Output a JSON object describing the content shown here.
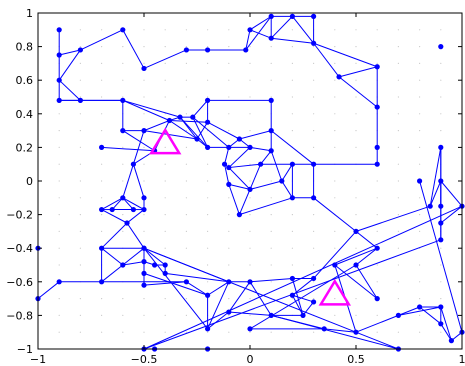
{
  "chart_data": {
    "type": "scatter",
    "title": "",
    "xlabel": "",
    "ylabel": "",
    "xlim": [
      -1,
      1
    ],
    "ylim": [
      -1,
      1
    ],
    "grid": "dotted",
    "x_ticks": [
      {
        "value": -1,
        "label": "−1"
      },
      {
        "value": -0.5,
        "label": "−0.5"
      },
      {
        "value": 0,
        "label": "0"
      },
      {
        "value": 0.5,
        "label": "0.5"
      },
      {
        "value": 1,
        "label": "1"
      }
    ],
    "y_ticks": [
      {
        "value": -1,
        "label": "−1"
      },
      {
        "value": -0.8,
        "label": "−0.8"
      },
      {
        "value": -0.6,
        "label": "−0.6"
      },
      {
        "value": -0.4,
        "label": "−0.4"
      },
      {
        "value": -0.2,
        "label": "−0.2"
      },
      {
        "value": 0,
        "label": "0"
      },
      {
        "value": 0.2,
        "label": "0.2"
      },
      {
        "value": 0.4,
        "label": "0.4"
      },
      {
        "value": 0.6,
        "label": "0.6"
      },
      {
        "value": 0.8,
        "label": "0.8"
      },
      {
        "value": 1,
        "label": "1"
      }
    ],
    "colors": {
      "network": "#0000ff",
      "markers": "#ff00ff",
      "grid": "#c8c8c8",
      "axes": "#000000"
    },
    "nodes": [
      {
        "x": -0.9,
        "y": 0.9
      },
      {
        "x": -0.9,
        "y": 0.75
      },
      {
        "x": -0.9,
        "y": 0.6
      },
      {
        "x": -0.9,
        "y": 0.48
      },
      {
        "x": -0.8,
        "y": 0.78
      },
      {
        "x": -0.8,
        "y": 0.48
      },
      {
        "x": -0.6,
        "y": 0.9
      },
      {
        "x": -0.5,
        "y": 0.67
      },
      {
        "x": -0.3,
        "y": 0.78
      },
      {
        "x": -0.2,
        "y": 0.78
      },
      {
        "x": -0.02,
        "y": 0.78
      },
      {
        "x": 0.1,
        "y": 0.98
      },
      {
        "x": 0.2,
        "y": 0.98
      },
      {
        "x": 0.3,
        "y": 0.98
      },
      {
        "x": 0.0,
        "y": 0.9
      },
      {
        "x": 0.1,
        "y": 0.85
      },
      {
        "x": 0.3,
        "y": 0.82
      },
      {
        "x": 0.42,
        "y": 0.62
      },
      {
        "x": 0.6,
        "y": 0.68
      },
      {
        "x": 0.6,
        "y": 0.44
      },
      {
        "x": 0.6,
        "y": 0.2
      },
      {
        "x": 0.6,
        "y": 0.1
      },
      {
        "x": 0.9,
        "y": 0.8
      },
      {
        "x": -0.6,
        "y": 0.48
      },
      {
        "x": -0.6,
        "y": 0.3
      },
      {
        "x": -0.5,
        "y": 0.3
      },
      {
        "x": -0.38,
        "y": 0.36
      },
      {
        "x": -0.33,
        "y": 0.38
      },
      {
        "x": -0.27,
        "y": 0.38
      },
      {
        "x": -0.2,
        "y": 0.48
      },
      {
        "x": -0.2,
        "y": 0.35
      },
      {
        "x": -0.25,
        "y": 0.25
      },
      {
        "x": -0.2,
        "y": 0.2
      },
      {
        "x": -0.1,
        "y": 0.2
      },
      {
        "x": -0.05,
        "y": 0.25
      },
      {
        "x": -0.7,
        "y": 0.2
      },
      {
        "x": -0.45,
        "y": 0.18
      },
      {
        "x": -0.55,
        "y": 0.1
      },
      {
        "x": -0.1,
        "y": 0.08
      },
      {
        "x": 0.0,
        "y": 0.2
      },
      {
        "x": 0.1,
        "y": 0.48
      },
      {
        "x": 0.1,
        "y": 0.3
      },
      {
        "x": 0.1,
        "y": 0.18
      },
      {
        "x": 0.05,
        "y": 0.1
      },
      {
        "x": 0.0,
        "y": -0.05
      },
      {
        "x": 0.2,
        "y": 0.1
      },
      {
        "x": 0.3,
        "y": 0.1
      },
      {
        "x": 0.15,
        "y": 0.0
      },
      {
        "x": 0.2,
        "y": -0.1
      },
      {
        "x": 0.3,
        "y": -0.1
      },
      {
        "x": -0.1,
        "y": -0.02
      },
      {
        "x": -0.05,
        "y": -0.2
      },
      {
        "x": -0.12,
        "y": 0.1
      },
      {
        "x": -0.6,
        "y": -0.1
      },
      {
        "x": -0.7,
        "y": -0.17
      },
      {
        "x": -0.65,
        "y": -0.17
      },
      {
        "x": -0.55,
        "y": -0.17
      },
      {
        "x": -0.5,
        "y": -0.17
      },
      {
        "x": -0.5,
        "y": -0.1
      },
      {
        "x": -0.58,
        "y": -0.25
      },
      {
        "x": -0.7,
        "y": -0.4
      },
      {
        "x": -0.5,
        "y": -0.4
      },
      {
        "x": -0.6,
        "y": -0.5
      },
      {
        "x": -0.5,
        "y": -0.48
      },
      {
        "x": -0.45,
        "y": -0.5
      },
      {
        "x": -0.4,
        "y": -0.5
      },
      {
        "x": -0.5,
        "y": -0.55
      },
      {
        "x": -0.4,
        "y": -0.55
      },
      {
        "x": -0.5,
        "y": -0.62
      },
      {
        "x": -1.0,
        "y": -0.4
      },
      {
        "x": -1.0,
        "y": -0.7
      },
      {
        "x": -0.9,
        "y": -0.6
      },
      {
        "x": -0.7,
        "y": -0.6
      },
      {
        "x": -0.3,
        "y": -0.6
      },
      {
        "x": -0.2,
        "y": -0.68
      },
      {
        "x": -0.1,
        "y": -0.6
      },
      {
        "x": 0.0,
        "y": -0.6
      },
      {
        "x": 0.2,
        "y": -0.58
      },
      {
        "x": 0.3,
        "y": -0.58
      },
      {
        "x": 0.2,
        "y": -0.68
      },
      {
        "x": 0.25,
        "y": -0.8
      },
      {
        "x": 0.3,
        "y": -0.72
      },
      {
        "x": 0.1,
        "y": -0.8
      },
      {
        "x": -0.1,
        "y": -0.78
      },
      {
        "x": -0.2,
        "y": -0.88
      },
      {
        "x": -0.5,
        "y": -0.4
      },
      {
        "x": 0.5,
        "y": -0.3
      },
      {
        "x": 0.6,
        "y": -0.4
      },
      {
        "x": 0.4,
        "y": -0.5
      },
      {
        "x": 0.5,
        "y": -0.5
      },
      {
        "x": 0.6,
        "y": -0.7
      },
      {
        "x": 0.5,
        "y": -0.9
      },
      {
        "x": 0.35,
        "y": -0.88
      },
      {
        "x": 0.0,
        "y": -0.88
      },
      {
        "x": 0.7,
        "y": -1.0
      },
      {
        "x": 0.7,
        "y": -0.8
      },
      {
        "x": 0.8,
        "y": -0.75
      },
      {
        "x": 0.9,
        "y": -0.75
      },
      {
        "x": 0.9,
        "y": -0.85
      },
      {
        "x": 0.95,
        "y": -0.95
      },
      {
        "x": 1.0,
        "y": -0.9
      },
      {
        "x": 0.8,
        "y": 0.0
      },
      {
        "x": 0.9,
        "y": 0.0
      },
      {
        "x": 0.9,
        "y": 0.2
      },
      {
        "x": 0.85,
        "y": -0.15
      },
      {
        "x": 0.9,
        "y": -0.15
      },
      {
        "x": 1.0,
        "y": -0.15
      },
      {
        "x": 0.9,
        "y": -0.25
      },
      {
        "x": 0.9,
        "y": -0.35
      },
      {
        "x": -0.5,
        "y": -1.0
      },
      {
        "x": -0.45,
        "y": -1.0
      },
      {
        "x": -0.2,
        "y": -1.0
      }
    ],
    "edges": [
      [
        0,
        1
      ],
      [
        1,
        2
      ],
      [
        2,
        3
      ],
      [
        1,
        4
      ],
      [
        4,
        6
      ],
      [
        6,
        7
      ],
      [
        7,
        8
      ],
      [
        4,
        2
      ],
      [
        2,
        5
      ],
      [
        5,
        3
      ],
      [
        3,
        23
      ],
      [
        5,
        23
      ],
      [
        8,
        9
      ],
      [
        9,
        10
      ],
      [
        10,
        14
      ],
      [
        14,
        11
      ],
      [
        11,
        12
      ],
      [
        12,
        13
      ],
      [
        13,
        16
      ],
      [
        11,
        15
      ],
      [
        12,
        15
      ],
      [
        14,
        15
      ],
      [
        15,
        16
      ],
      [
        10,
        11
      ],
      [
        12,
        16
      ],
      [
        16,
        17
      ],
      [
        17,
        18
      ],
      [
        18,
        19
      ],
      [
        19,
        20
      ],
      [
        20,
        21
      ],
      [
        16,
        18
      ],
      [
        17,
        19
      ],
      [
        21,
        46
      ],
      [
        23,
        24
      ],
      [
        23,
        27
      ],
      [
        23,
        26
      ],
      [
        24,
        25
      ],
      [
        25,
        26
      ],
      [
        26,
        27
      ],
      [
        27,
        28
      ],
      [
        28,
        29
      ],
      [
        29,
        30
      ],
      [
        30,
        31
      ],
      [
        31,
        32
      ],
      [
        32,
        33
      ],
      [
        33,
        34
      ],
      [
        26,
        30
      ],
      [
        27,
        31
      ],
      [
        28,
        32
      ],
      [
        29,
        40
      ],
      [
        40,
        41
      ],
      [
        41,
        42
      ],
      [
        42,
        43
      ],
      [
        43,
        44
      ],
      [
        33,
        39
      ],
      [
        39,
        34
      ],
      [
        34,
        41
      ],
      [
        39,
        42
      ],
      [
        35,
        36
      ],
      [
        36,
        37
      ],
      [
        37,
        25
      ],
      [
        36,
        26
      ],
      [
        24,
        36
      ],
      [
        26,
        31
      ],
      [
        27,
        32
      ],
      [
        28,
        33
      ],
      [
        25,
        31
      ],
      [
        30,
        34
      ],
      [
        38,
        39
      ],
      [
        38,
        52
      ],
      [
        52,
        50
      ],
      [
        50,
        44
      ],
      [
        44,
        47
      ],
      [
        47,
        48
      ],
      [
        48,
        49
      ],
      [
        49,
        46
      ],
      [
        46,
        45
      ],
      [
        45,
        47
      ],
      [
        43,
        45
      ],
      [
        42,
        47
      ],
      [
        50,
        51
      ],
      [
        51,
        48
      ],
      [
        44,
        51
      ],
      [
        38,
        44
      ],
      [
        52,
        33
      ],
      [
        43,
        38
      ],
      [
        41,
        46
      ],
      [
        45,
        48
      ],
      [
        37,
        53
      ],
      [
        53,
        54
      ],
      [
        53,
        55
      ],
      [
        53,
        56
      ],
      [
        53,
        57
      ],
      [
        54,
        55
      ],
      [
        55,
        56
      ],
      [
        56,
        57
      ],
      [
        57,
        58
      ],
      [
        58,
        37
      ],
      [
        54,
        59
      ],
      [
        59,
        57
      ],
      [
        59,
        60
      ],
      [
        60,
        61
      ],
      [
        60,
        62
      ],
      [
        61,
        62
      ],
      [
        62,
        63
      ],
      [
        63,
        64
      ],
      [
        64,
        65
      ],
      [
        63,
        66
      ],
      [
        65,
        67
      ],
      [
        66,
        68
      ],
      [
        61,
        63
      ],
      [
        61,
        65
      ],
      [
        69,
        70
      ],
      [
        70,
        71
      ],
      [
        71,
        72
      ],
      [
        72,
        60
      ],
      [
        72,
        62
      ],
      [
        72,
        73
      ],
      [
        73,
        74
      ],
      [
        74,
        75
      ],
      [
        75,
        76
      ],
      [
        76,
        77
      ],
      [
        77,
        78
      ],
      [
        78,
        79
      ],
      [
        79,
        80
      ],
      [
        80,
        81
      ],
      [
        81,
        79
      ],
      [
        74,
        84
      ],
      [
        84,
        85
      ],
      [
        85,
        75
      ],
      [
        75,
        84
      ],
      [
        76,
        83
      ],
      [
        83,
        82
      ],
      [
        82,
        80
      ],
      [
        82,
        92
      ],
      [
        92,
        93
      ],
      [
        93,
        89
      ],
      [
        89,
        90
      ],
      [
        90,
        88
      ],
      [
        88,
        87
      ],
      [
        87,
        86
      ],
      [
        86,
        78
      ],
      [
        87,
        89
      ],
      [
        88,
        91
      ],
      [
        91,
        92
      ],
      [
        91,
        95
      ],
      [
        95,
        96
      ],
      [
        96,
        97
      ],
      [
        97,
        98
      ],
      [
        98,
        99
      ],
      [
        99,
        100
      ],
      [
        100,
        101
      ],
      [
        96,
        98
      ],
      [
        97,
        99
      ],
      [
        95,
        97
      ],
      [
        49,
        86
      ],
      [
        86,
        104
      ],
      [
        104,
        103
      ],
      [
        103,
        105
      ],
      [
        105,
        102
      ],
      [
        102,
        106
      ],
      [
        106,
        107
      ],
      [
        107,
        108
      ],
      [
        108,
        109
      ],
      [
        109,
        110
      ],
      [
        102,
        104
      ],
      [
        103,
        107
      ],
      [
        105,
        108
      ],
      [
        106,
        109
      ],
      [
        59,
        61
      ],
      [
        67,
        75
      ],
      [
        66,
        74
      ],
      [
        68,
        73
      ],
      [
        111,
        112
      ],
      [
        112,
        113
      ],
      [
        85,
        94
      ],
      [
        94,
        82
      ],
      [
        84,
        83
      ],
      [
        77,
        80
      ],
      [
        76,
        82
      ]
    ],
    "markers": [
      {
        "shape": "triangle",
        "x": -0.4,
        "y": 0.22
      },
      {
        "shape": "triangle",
        "x": 0.4,
        "y": -0.68
      }
    ]
  }
}
